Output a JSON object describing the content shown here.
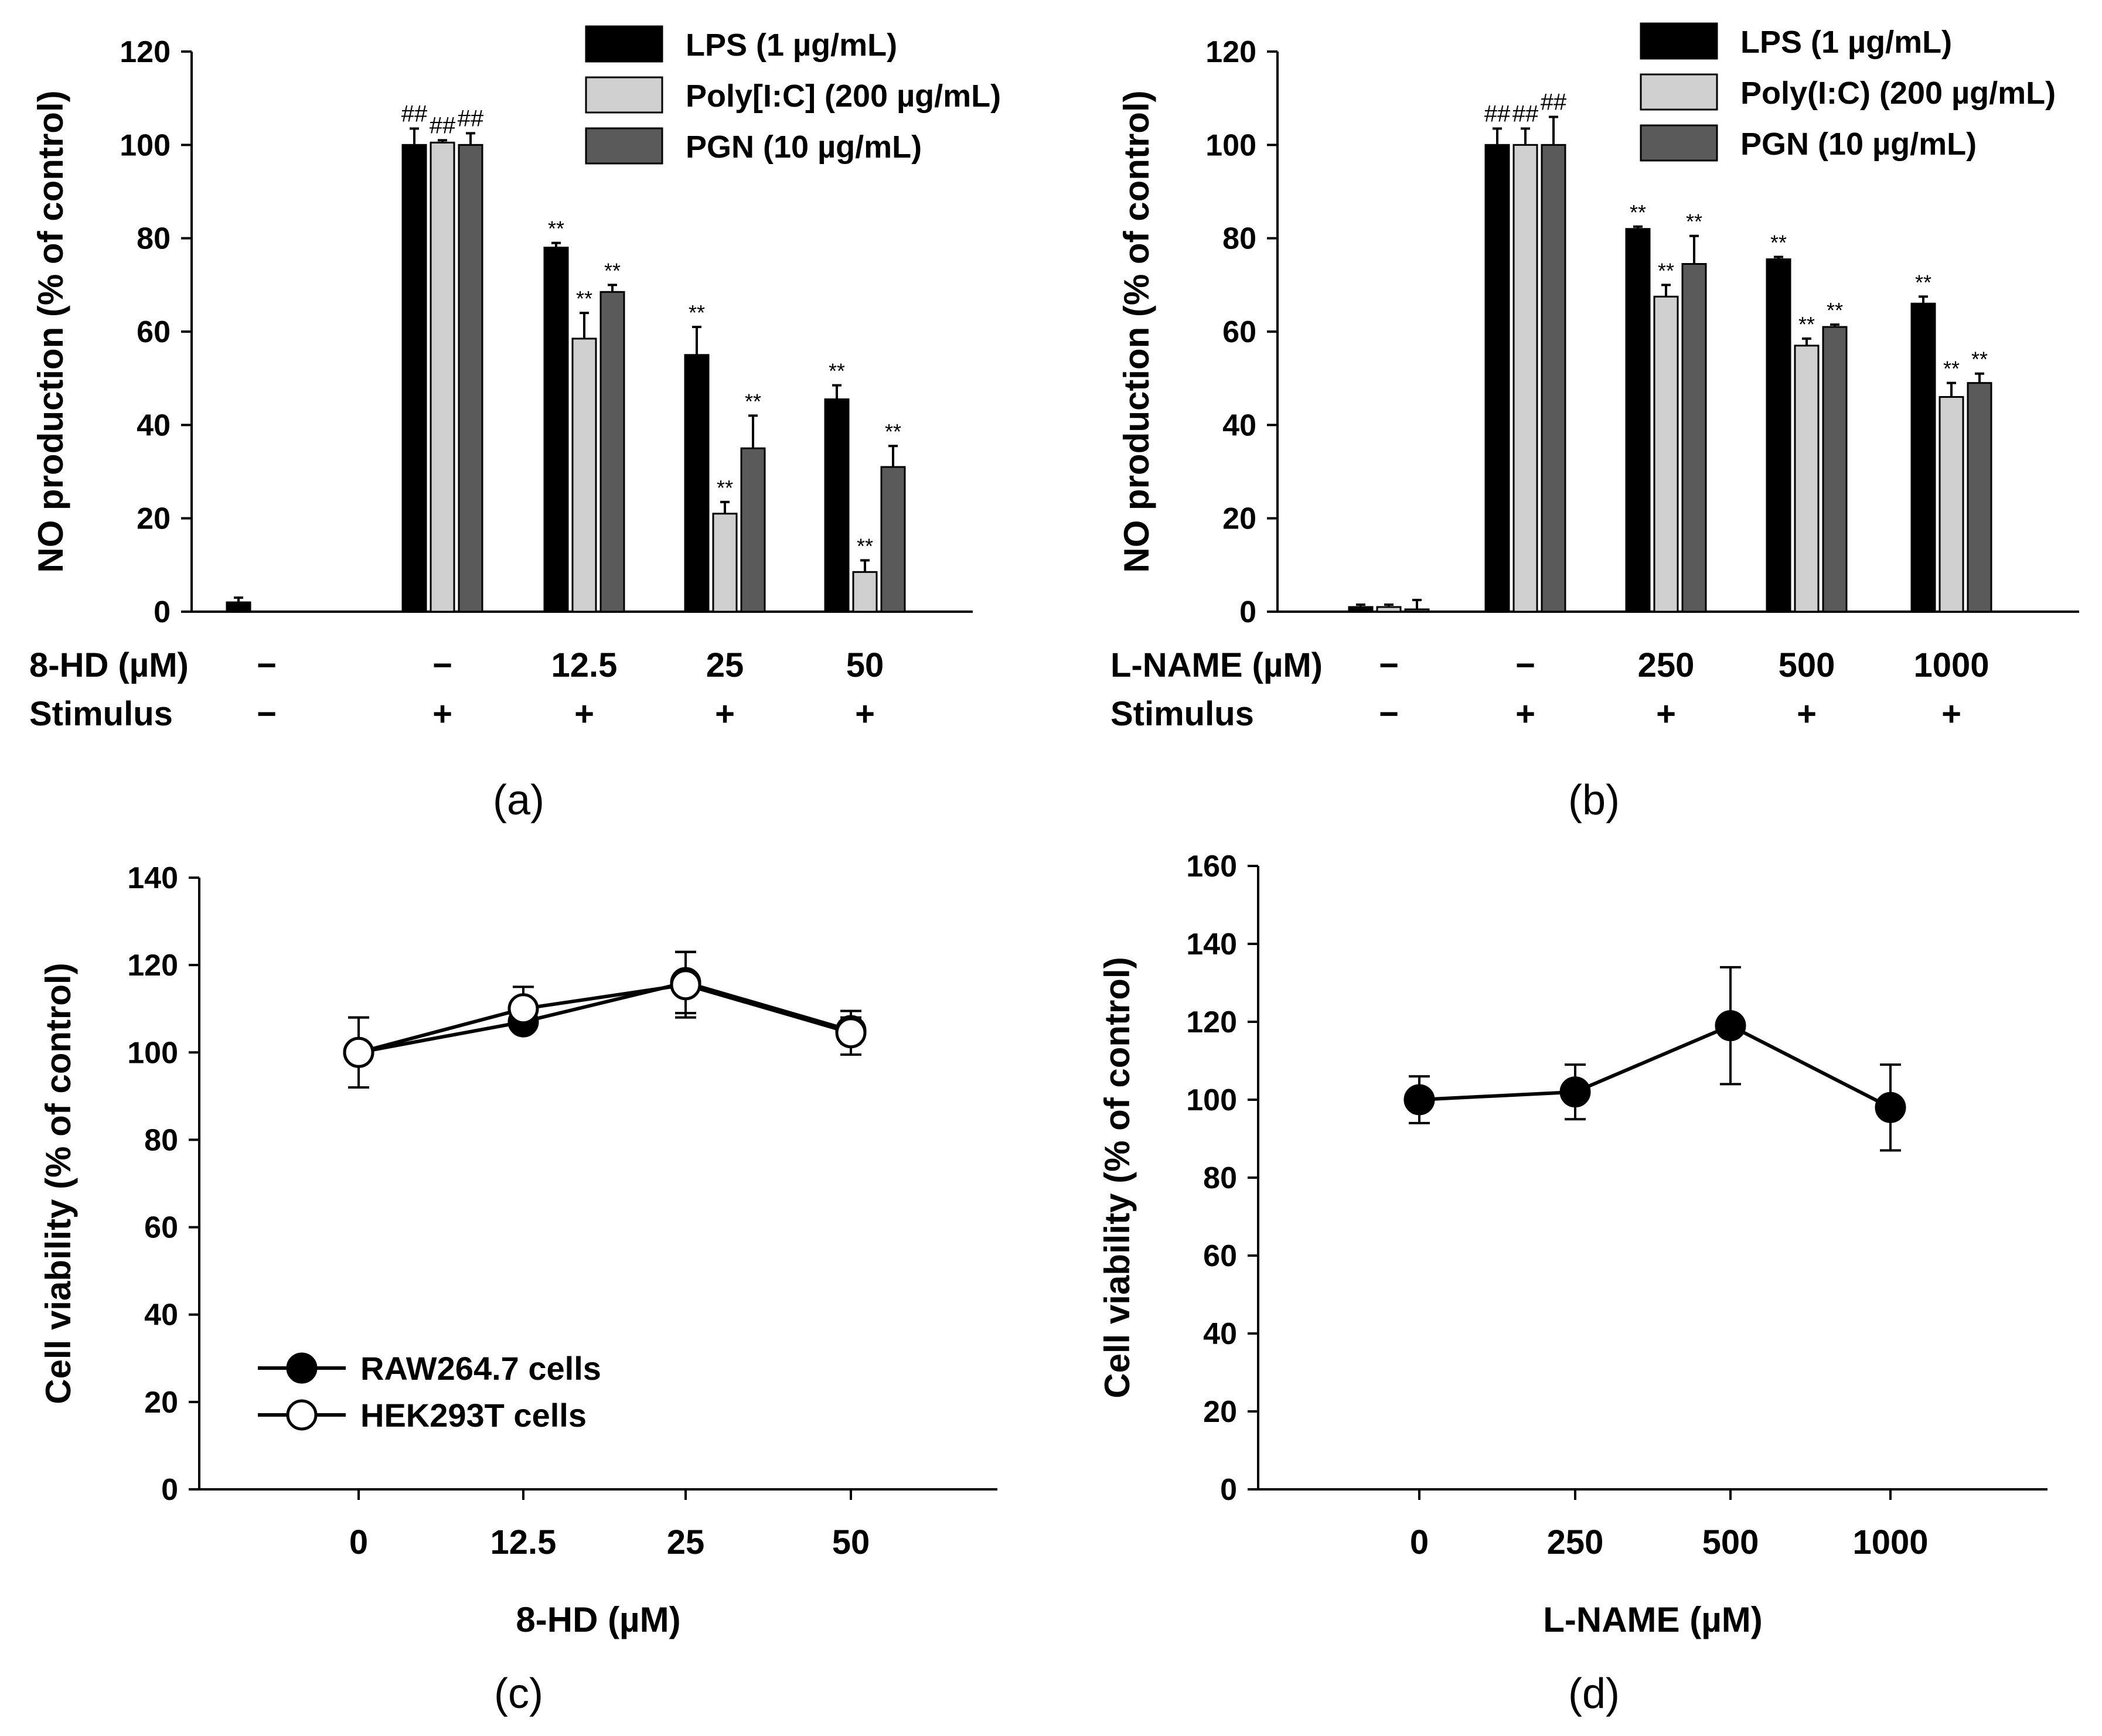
{
  "colors": {
    "lps": "#000000",
    "polyic": "#d0d0d0",
    "pgn": "#5a5a5a",
    "axis": "#000000"
  },
  "chart_data": [
    {
      "id": "a",
      "type": "bar",
      "panel_label": "(a)",
      "ylabel": "NO production (% of control)",
      "ylim": [
        0,
        120
      ],
      "yticks": [
        "0",
        "20",
        "40",
        "60",
        "80",
        "100",
        "120"
      ],
      "row_labels": [
        "8-HD (µM)",
        "Stimulus"
      ],
      "dose_labels": [
        "−",
        "−",
        "12.5",
        "25",
        "50"
      ],
      "stim_labels": [
        "−",
        "+",
        "+",
        "+",
        "+"
      ],
      "legend": [
        "LPS (1 µg/mL)",
        "Poly[I:C] (200 µg/mL)",
        "PGN (10 µg/mL)"
      ],
      "series": [
        {
          "name": "LPS (1 µg/mL)",
          "values": [
            2,
            100,
            78,
            55,
            45.5
          ],
          "errors": [
            1,
            3.5,
            1,
            6,
            3
          ],
          "marks": [
            "",
            "##",
            "**",
            "**",
            "**"
          ]
        },
        {
          "name": "Poly[I:C] (200 µg/mL)",
          "values": [
            0,
            100.5,
            58.5,
            21,
            8.5
          ],
          "errors": [
            0,
            0.5,
            5.5,
            2.5,
            2.5
          ],
          "marks": [
            "",
            "##",
            "**",
            "**",
            "**"
          ]
        },
        {
          "name": "PGN (10 µg/mL)",
          "values": [
            0,
            100,
            68.5,
            35,
            31
          ],
          "errors": [
            0,
            2.5,
            1.5,
            7,
            4.5
          ],
          "marks": [
            "",
            "##",
            "**",
            "**",
            "**"
          ]
        }
      ]
    },
    {
      "id": "b",
      "type": "bar",
      "panel_label": "(b)",
      "ylabel": "NO production (% of control)",
      "ylim": [
        0,
        120
      ],
      "yticks": [
        "0",
        "20",
        "40",
        "60",
        "80",
        "100",
        "120"
      ],
      "row_labels": [
        "L-NAME (µM)",
        "Stimulus"
      ],
      "dose_labels": [
        "−",
        "−",
        "250",
        "500",
        "1000"
      ],
      "stim_labels": [
        "−",
        "+",
        "+",
        "+",
        "+"
      ],
      "legend": [
        "LPS (1 µg/mL)",
        "Poly(I:C) (200 µg/mL)",
        "PGN (10 µg/mL)"
      ],
      "series": [
        {
          "name": "LPS (1 µg/mL)",
          "values": [
            1,
            100,
            82,
            75.5,
            66
          ],
          "errors": [
            0.5,
            3.5,
            0.5,
            0.5,
            1.5
          ],
          "marks": [
            "",
            "##",
            "**",
            "**",
            "**"
          ]
        },
        {
          "name": "Poly(I:C) (200 µg/mL)",
          "values": [
            1,
            100,
            67.5,
            57,
            46
          ],
          "errors": [
            0.5,
            3.5,
            2.5,
            1.5,
            3
          ],
          "marks": [
            "",
            "##",
            "**",
            "**",
            "**"
          ]
        },
        {
          "name": "PGN (10 µg/mL)",
          "values": [
            0.5,
            100,
            74.5,
            61,
            49
          ],
          "errors": [
            2,
            6,
            6,
            0.5,
            2
          ],
          "marks": [
            "",
            "##",
            "**",
            "**",
            "**"
          ]
        }
      ]
    },
    {
      "id": "c",
      "type": "line",
      "panel_label": "(c)",
      "ylabel": "Cell viability (% of control)",
      "xlabel": "8-HD (µM)",
      "ylim": [
        0,
        140
      ],
      "yticks": [
        "0",
        "20",
        "40",
        "60",
        "80",
        "100",
        "120",
        "140"
      ],
      "categories": [
        "0",
        "12.5",
        "25",
        "50"
      ],
      "legend": [
        "RAW264.7 cells",
        "HEK293T cells"
      ],
      "series": [
        {
          "name": "RAW264.7 cells",
          "marker": "filled",
          "values": [
            100,
            107,
            116,
            105
          ],
          "errors": [
            8,
            2,
            7,
            3
          ]
        },
        {
          "name": "HEK293T cells",
          "marker": "open",
          "values": [
            100,
            110,
            115.5,
            104.5
          ],
          "errors": [
            8,
            5,
            7.5,
            5
          ]
        }
      ]
    },
    {
      "id": "d",
      "type": "line",
      "panel_label": "(d)",
      "ylabel": "Cell viability (% of control)",
      "xlabel": "L-NAME (µM)",
      "ylim": [
        0,
        160
      ],
      "yticks": [
        "0",
        "20",
        "40",
        "60",
        "80",
        "100",
        "120",
        "140",
        "160"
      ],
      "categories": [
        "0",
        "250",
        "500",
        "1000"
      ],
      "series": [
        {
          "name": "L-NAME",
          "marker": "filled",
          "values": [
            100,
            102,
            119,
            98
          ],
          "errors": [
            6,
            7,
            15,
            11
          ]
        }
      ]
    }
  ]
}
